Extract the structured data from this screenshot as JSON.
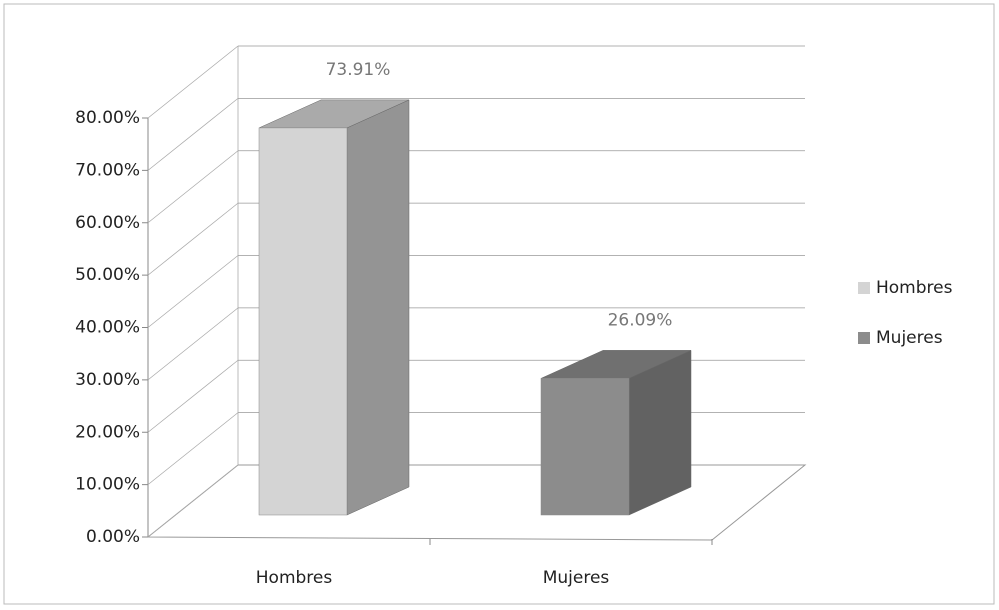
{
  "chart_data": {
    "type": "bar3d",
    "categories": [
      "Hombres",
      "Mujeres"
    ],
    "series": [
      {
        "name": "Hombres",
        "color": "#d4d4d4",
        "values": [
          73.91,
          null
        ],
        "value_labels": [
          "73.91%",
          null
        ]
      },
      {
        "name": "Mujeres",
        "color": "#8c8c8c",
        "values": [
          null,
          26.09
        ],
        "value_labels": [
          null,
          "26.09%"
        ]
      }
    ],
    "ylim": [
      0,
      80
    ],
    "yticks": [
      {
        "value": 0,
        "label": "0.00%"
      },
      {
        "value": 10,
        "label": "10.00%"
      },
      {
        "value": 20,
        "label": "20.00%"
      },
      {
        "value": 30,
        "label": "30.00%"
      },
      {
        "value": 40,
        "label": "40.00%"
      },
      {
        "value": 50,
        "label": "50.00%"
      },
      {
        "value": 60,
        "label": "60.00%"
      },
      {
        "value": 70,
        "label": "70.00%"
      },
      {
        "value": 80,
        "label": "80.00%"
      }
    ],
    "grid": true,
    "legend": "right"
  }
}
